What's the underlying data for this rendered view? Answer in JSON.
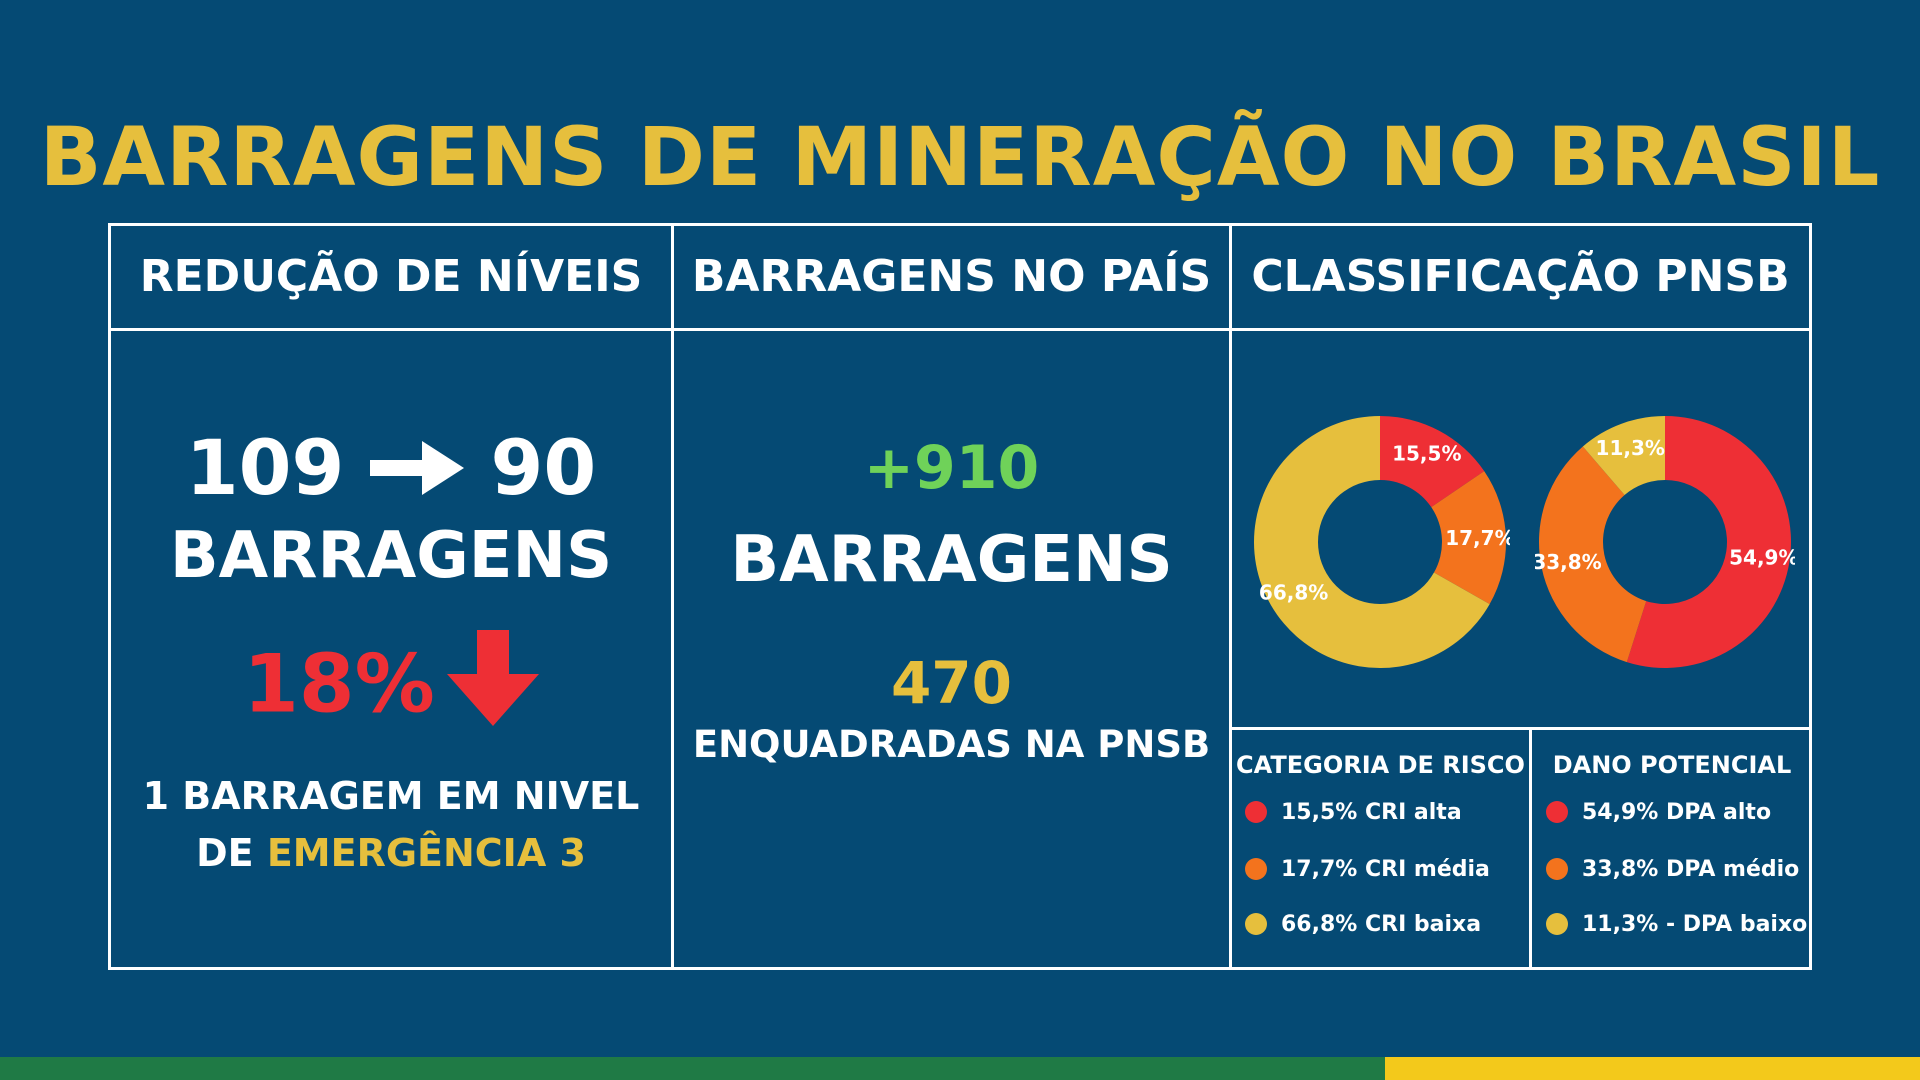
{
  "title": "BARRAGENS DE MINERAÇÃO NO BRASIL",
  "colors": {
    "background": "#054a74",
    "yellow": "#e6bf3d",
    "red": "#ee2f35",
    "orange": "#f3731d",
    "green": "#6fd259",
    "stripe_green": "#1f7a45",
    "stripe_yellow": "#f3c91b"
  },
  "columns": {
    "reducao": {
      "header": "REDUÇÃO DE NÍVEIS",
      "from": "109",
      "to": "90",
      "unit": "BARRAGENS",
      "percent": "18%",
      "note_line1": "1 BARRAGEM EM NIVEL",
      "note_de": "DE",
      "note_highlight": "EMERGÊNCIA 3",
      "icons": [
        "arrow-right-icon",
        "arrow-down-icon"
      ]
    },
    "pais": {
      "header": "BARRAGENS NO PAÍS",
      "total": "+910",
      "unit": "BARRAGENS",
      "pnsb_count": "470",
      "pnsb_label": "ENQUADRADAS NA PNSB"
    },
    "classificacao": {
      "header": "CLASSIFICAÇÃO PNSB"
    }
  },
  "legends": {
    "risco": {
      "title": "CATEGORIA DE RISCO",
      "items": [
        "15,5% CRI alta",
        "17,7% CRI média",
        "66,8% CRI baixa"
      ]
    },
    "dano": {
      "title": "DANO POTENCIAL",
      "items": [
        "54,9% DPA alto",
        "33,8% DPA médio",
        "11,3% - DPA baixo"
      ]
    }
  },
  "chart_data": [
    {
      "type": "pie",
      "categories": [
        "CRI alta",
        "CRI média",
        "CRI baixa"
      ],
      "values": [
        15.5,
        17.7,
        66.8
      ],
      "labels": [
        "15,5%",
        "17,7%",
        "66,8%"
      ],
      "colors": [
        "#ee2f35",
        "#f3731d",
        "#e6bf3d"
      ],
      "donut": true
    },
    {
      "type": "pie",
      "categories": [
        "DPA alto",
        "DPA médio",
        "DPA baixo"
      ],
      "values": [
        54.9,
        33.8,
        11.3
      ],
      "labels": [
        "54,9%",
        "33,8%",
        "11,3%"
      ],
      "colors": [
        "#ee2f35",
        "#f3731d",
        "#e6bf3d"
      ],
      "donut": true
    }
  ]
}
